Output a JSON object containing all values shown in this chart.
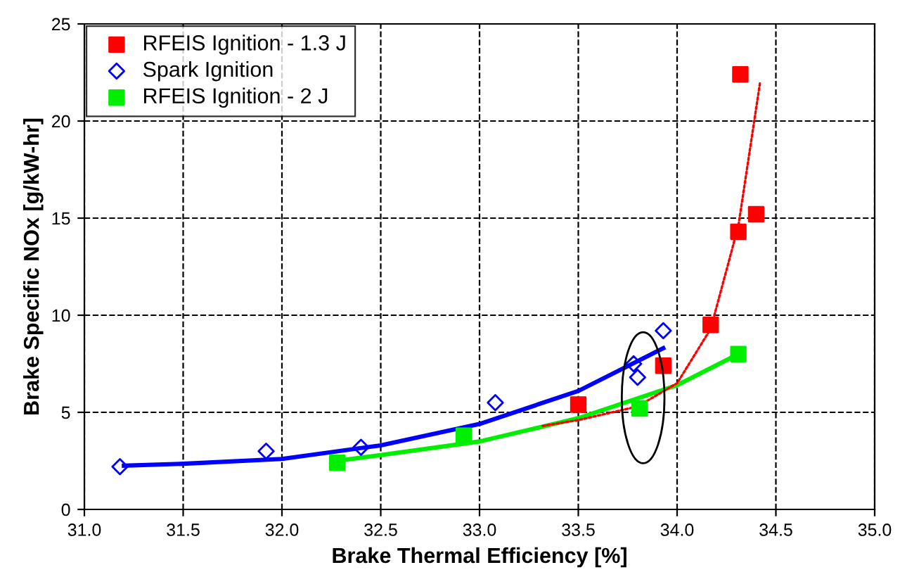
{
  "chart_data": {
    "type": "scatter",
    "xlabel": "Brake Thermal Efficiency [%]",
    "ylabel": "Brake Specific NOx [g/kW-hr]",
    "xlim": [
      31.0,
      35.0
    ],
    "xticks": [
      {
        "value": 31.0,
        "label": "31.0"
      },
      {
        "value": 31.5,
        "label": "31.5"
      },
      {
        "value": 32.0,
        "label": "32.0"
      },
      {
        "value": 32.5,
        "label": "32.5"
      },
      {
        "value": 33.0,
        "label": "33.0"
      },
      {
        "value": 33.5,
        "label": "33.5"
      },
      {
        "value": 34.0,
        "label": "34.0"
      },
      {
        "value": 34.5,
        "label": "34.5"
      },
      {
        "value": 35.0,
        "label": "35.0"
      }
    ],
    "ylim": [
      0,
      25
    ],
    "yticks": [
      0,
      5,
      10,
      15,
      20,
      25
    ],
    "grid": true,
    "line_style": "dashed",
    "legend": "top left",
    "series": [
      {
        "name": "RFEIS Ignition - 1.3 J",
        "marker": "square",
        "color": "#ff0000",
        "x": [
          33.5,
          33.93,
          34.17,
          34.31,
          34.32,
          34.4
        ],
        "values": [
          5.4,
          7.4,
          9.5,
          14.3,
          22.4,
          15.2
        ]
      },
      {
        "name": "Spark Ignition",
        "marker": "diamond",
        "color": "#0000ff",
        "x": [
          31.18,
          31.92,
          32.4,
          33.08,
          33.78,
          33.8,
          33.93
        ],
        "values": [
          2.2,
          3.0,
          3.2,
          5.5,
          7.5,
          6.8,
          9.2
        ]
      },
      {
        "name": "RFEIS Ignition - 2 J",
        "marker": "square",
        "color": "#00ee00",
        "x": [
          32.28,
          32.92,
          33.81,
          34.31
        ],
        "values": [
          2.4,
          3.8,
          5.2,
          8.0
        ]
      },
      {
        "type": "line",
        "line_style": "dotted",
        "color": "#ff0000",
        "x": [
          33.32,
          33.5,
          33.8,
          34.0,
          34.17,
          34.31,
          34.42
        ],
        "values": [
          4.3,
          4.6,
          5.3,
          6.5,
          9.3,
          14.6,
          22.0
        ]
      },
      {
        "type": "line",
        "line_style": "solid",
        "color": "#0000ff",
        "x": [
          31.2,
          31.5,
          32.0,
          32.5,
          33.0,
          33.5,
          33.93
        ],
        "values": [
          2.25,
          2.35,
          2.6,
          3.3,
          4.4,
          6.1,
          8.3
        ]
      },
      {
        "type": "line",
        "line_style": "solid",
        "color": "#00ee00",
        "x": [
          32.28,
          32.5,
          33.0,
          33.5,
          34.0,
          34.31
        ],
        "values": [
          2.5,
          2.8,
          3.5,
          4.7,
          6.4,
          8.0
        ]
      }
    ]
  }
}
